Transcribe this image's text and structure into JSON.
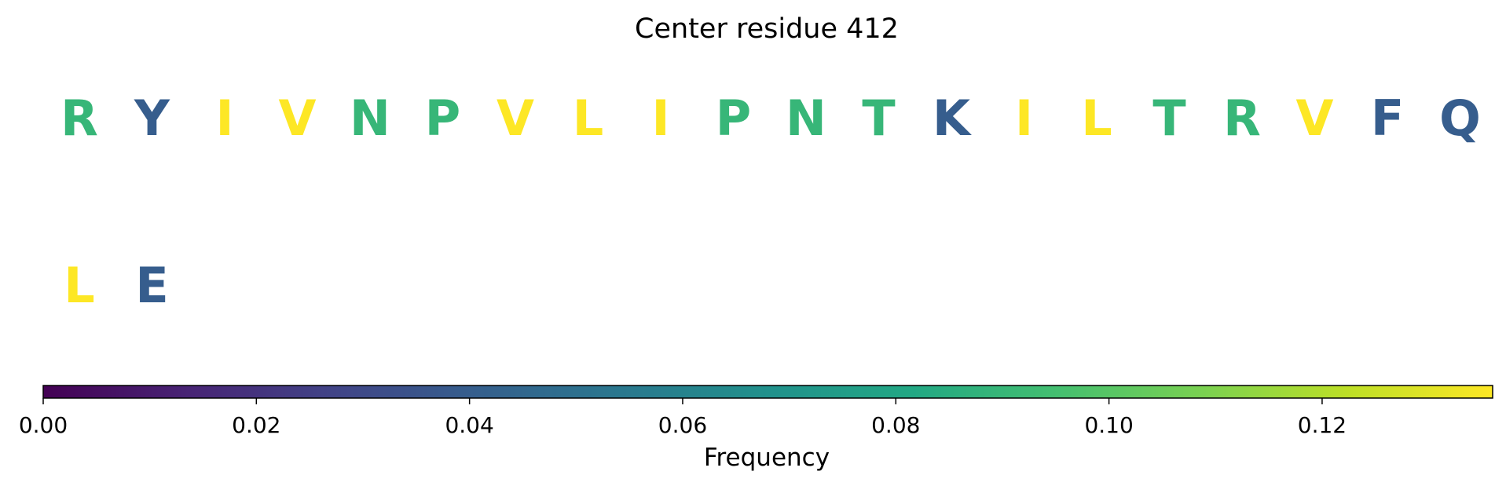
{
  "chart_data": {
    "type": "heatmap",
    "title": "Center residue 412",
    "residues": [
      "R",
      "Y",
      "I",
      "V",
      "N",
      "P",
      "V",
      "L",
      "I",
      "P",
      "N",
      "T",
      "K",
      "I",
      "L",
      "T",
      "R",
      "V",
      "F",
      "Q",
      "L",
      "E"
    ],
    "values": [
      0.09,
      0.04,
      0.136,
      0.136,
      0.09,
      0.09,
      0.136,
      0.136,
      0.136,
      0.09,
      0.09,
      0.09,
      0.04,
      0.136,
      0.136,
      0.09,
      0.09,
      0.136,
      0.04,
      0.04,
      0.136,
      0.04
    ],
    "per_row": 20,
    "colorbar": {
      "label": "Frequency",
      "range": [
        0,
        0.136
      ],
      "ticks": [
        "0.00",
        "0.02",
        "0.04",
        "0.06",
        "0.08",
        "0.10",
        "0.12"
      ],
      "colormap": "viridis",
      "orientation": "horizontal",
      "placement": "bottom"
    }
  }
}
